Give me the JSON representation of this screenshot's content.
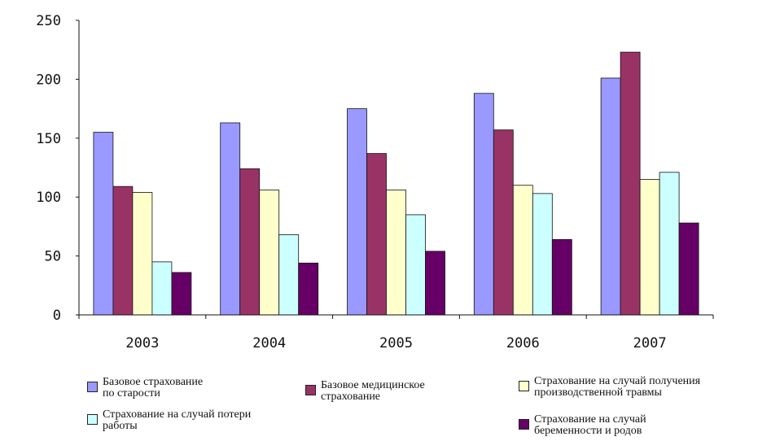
{
  "chart_data": {
    "type": "bar",
    "title": "",
    "xlabel": "",
    "ylabel": "",
    "ylim": [
      0,
      250
    ],
    "yticks": [
      0,
      50,
      100,
      150,
      200,
      250
    ],
    "categories": [
      "2003",
      "2004",
      "2005",
      "2006",
      "2007"
    ],
    "grid": false,
    "legend_position": "bottom",
    "series": [
      {
        "name": "Базовое страхование\nпо старости",
        "color": "#9999ff",
        "values": [
          155,
          163,
          175,
          188,
          201
        ]
      },
      {
        "name": "Базовое медицинское\nстрахование",
        "color": "#993366",
        "values": [
          109,
          124,
          137,
          157,
          223
        ]
      },
      {
        "name": "Страхование на случай получения\nпроизводственной травмы",
        "color": "#ffffcc",
        "values": [
          104,
          106,
          106,
          110,
          115
        ]
      },
      {
        "name": "Страхование на случай потери\nработы",
        "color": "#ccffff",
        "values": [
          45,
          68,
          85,
          103,
          121
        ]
      },
      {
        "name": "Страхование на случай\nбеременности и родов",
        "color": "#660066",
        "values": [
          36,
          44,
          54,
          64,
          78
        ]
      }
    ]
  }
}
